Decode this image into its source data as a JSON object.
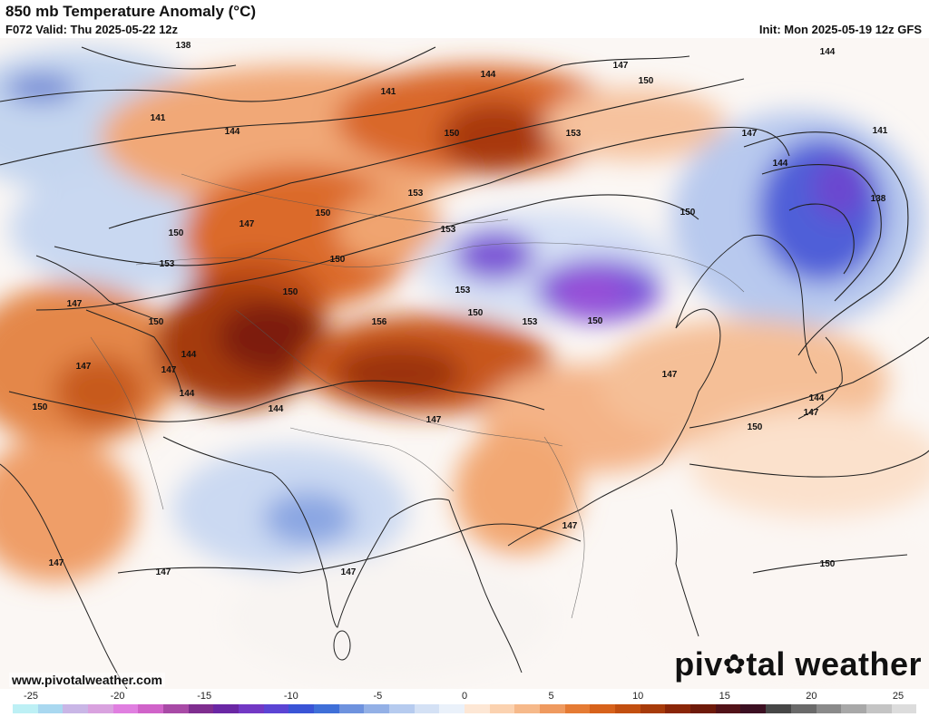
{
  "header": {
    "title": "850 mb Temperature Anomaly (°C)",
    "valid": "F072 Valid: Thu 2025-05-22 12z",
    "init": "Init: Mon 2025-05-19 12z GFS"
  },
  "footer": {
    "site": "www.pivotalweather.com",
    "brand_left": "piv",
    "brand_right": "tal weather",
    "brand_icon": "gear-icon"
  },
  "colorbar": {
    "ticks": [
      "-25",
      "-20",
      "-15",
      "-10",
      "-5",
      "0",
      "5",
      "10",
      "15",
      "20",
      "25"
    ],
    "colors": [
      "#bdf0f5",
      "#a9d8f0",
      "#c9b6e6",
      "#d9a2df",
      "#e07fe0",
      "#d063c9",
      "#a84aa6",
      "#7f2e8f",
      "#6a27a4",
      "#7238c4",
      "#5b44d4",
      "#3a54d6",
      "#3f6fd8",
      "#6e92de",
      "#93b0e6",
      "#b6cbef",
      "#d4e1f5",
      "#eaf1fa",
      "#fde7d5",
      "#fbd2b0",
      "#f6b98a",
      "#ef9a5f",
      "#e57b34",
      "#d7621b",
      "#c24f10",
      "#a73b0a",
      "#8a2608",
      "#6e1a0a",
      "#521218",
      "#3c1022",
      "#474747",
      "#6a6a6a",
      "#8a8a8a",
      "#a8a8a8",
      "#c4c4c4",
      "#dcdcdc"
    ]
  },
  "contour_labels": [
    "138",
    "141",
    "141",
    "144",
    "147",
    "150",
    "144",
    "150",
    "153",
    "147",
    "144",
    "141",
    "138",
    "144",
    "147",
    "150",
    "153",
    "150",
    "153",
    "150",
    "150",
    "153",
    "153",
    "156",
    "150",
    "147",
    "144",
    "147",
    "150",
    "147",
    "150",
    "144",
    "147",
    "147",
    "147",
    "147",
    "147",
    "150",
    "150",
    "144",
    "147",
    "153",
    "150",
    "150",
    "147",
    "144"
  ]
}
